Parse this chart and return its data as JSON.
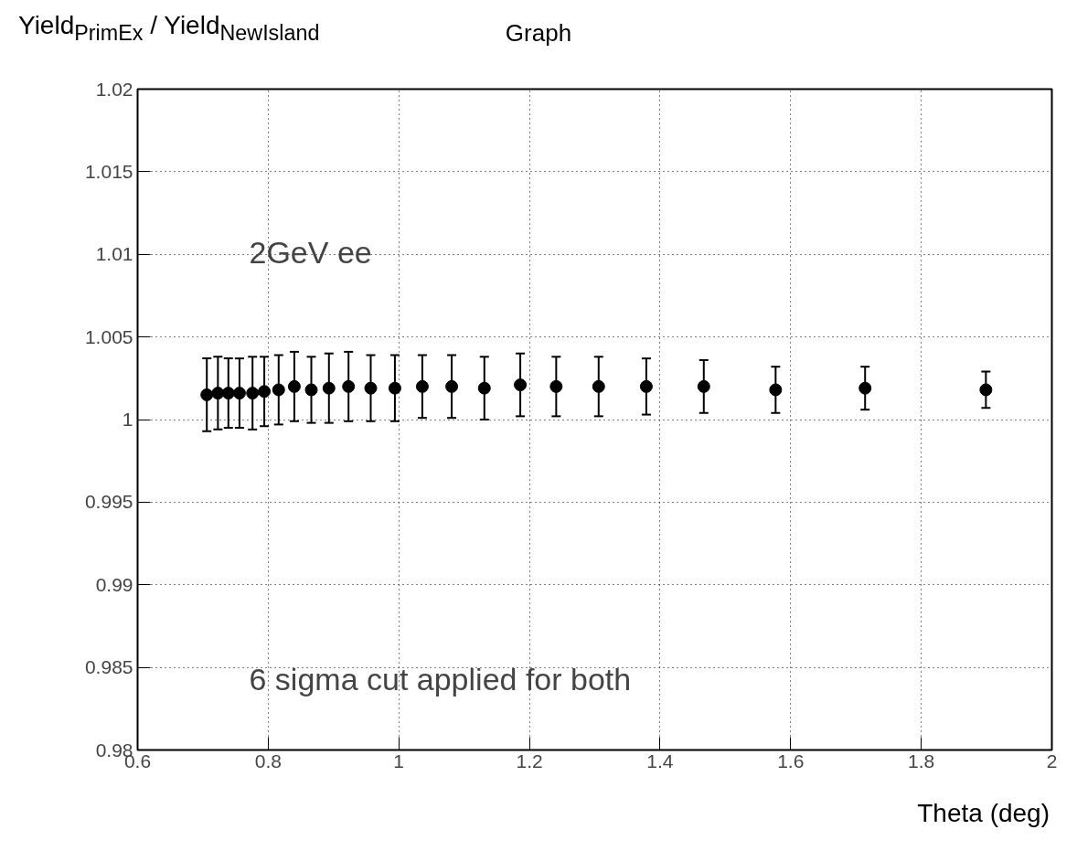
{
  "chart_data": {
    "type": "scatter",
    "title": "Graph",
    "xlabel": "Theta (deg)",
    "ylabel": "Yield$_{PrimEx}$ / Yield$_{NewIsland}$",
    "annotations": [
      "2GeV ee",
      "6 sigma cut applied for both"
    ],
    "x": [
      0.706,
      0.723,
      0.739,
      0.756,
      0.776,
      0.794,
      0.816,
      0.84,
      0.866,
      0.893,
      0.923,
      0.957,
      0.994,
      1.036,
      1.081,
      1.131,
      1.186,
      1.241,
      1.306,
      1.379,
      1.467,
      1.577,
      1.714,
      1.899
    ],
    "series": [
      {
        "color": "#000000",
        "values": [
          1.0015,
          1.0016,
          1.0016,
          1.0016,
          1.0016,
          1.0017,
          1.0018,
          1.002,
          1.0018,
          1.0019,
          1.002,
          1.0019,
          1.0019,
          1.002,
          1.002,
          1.0019,
          1.0021,
          1.002,
          1.002,
          1.002,
          1.002,
          1.0018,
          1.0019,
          1.0018
        ],
        "errors": [
          0.0022,
          0.0022,
          0.0021,
          0.0021,
          0.0022,
          0.0021,
          0.0021,
          0.0021,
          0.002,
          0.0021,
          0.0021,
          0.002,
          0.002,
          0.0019,
          0.0019,
          0.0019,
          0.0019,
          0.0018,
          0.0018,
          0.0017,
          0.0016,
          0.0014,
          0.0013,
          0.0011
        ]
      }
    ],
    "xlim": [
      0.6,
      2
    ],
    "xticks": [
      0.6,
      0.8,
      1,
      1.2,
      1.4,
      1.6,
      1.8,
      2
    ],
    "ylim": [
      0.98,
      1.02
    ],
    "yticks": [
      0.98,
      0.985,
      0.99,
      0.995,
      1,
      1.005,
      1.01,
      1.015,
      1.02
    ],
    "grid": true,
    "marker": "circle"
  }
}
